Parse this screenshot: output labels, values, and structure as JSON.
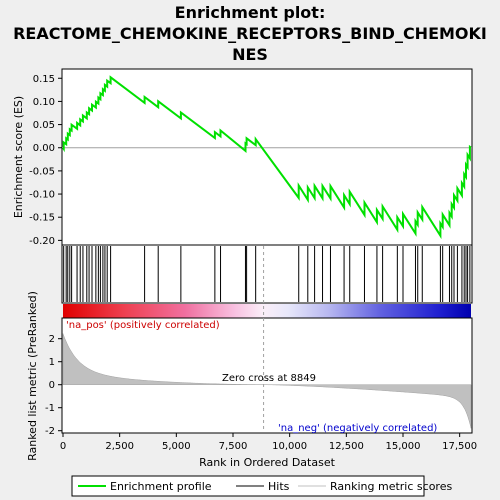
{
  "colors": {
    "es_line": "#00e000",
    "hits": "#000000",
    "metric_fill": "#c0c0c0",
    "pos_label": "#cc0000",
    "neg_label": "#0000cc",
    "zero_line": "#a0a0a0"
  },
  "chart_data": {
    "type": "line",
    "title_lines": [
      "Enrichment plot:",
      "REACTOME_CHEMOKINE_RECEPTORS_BIND_CHEMOKI",
      "NES"
    ],
    "n_genes": 18000,
    "es_panel": {
      "ylabel": "Enrichment score (ES)",
      "ylim": [
        -0.21,
        0.17
      ],
      "yticks": [
        0.15,
        0.1,
        0.05,
        0.0,
        -0.05,
        -0.1,
        -0.15,
        -0.2
      ],
      "ytick_labels": [
        "0.15",
        "0.10",
        "0.05",
        "0.00",
        "-0.05",
        "-0.10",
        "-0.15",
        "-0.20"
      ],
      "hits": [
        30,
        140,
        210,
        300,
        380,
        620,
        760,
        880,
        1050,
        1150,
        1280,
        1450,
        1560,
        1650,
        1760,
        1850,
        1950,
        2100,
        3600,
        4200,
        5200,
        6700,
        6950,
        8050,
        8100,
        8500,
        10400,
        10800,
        11100,
        11450,
        11800,
        12400,
        12650,
        13300,
        13850,
        14100,
        14750,
        15000,
        15550,
        15650,
        15850,
        16650,
        16750,
        17050,
        17150,
        17250,
        17400,
        17600,
        17700,
        17780,
        17850,
        17950
      ],
      "peak_es": 0.152,
      "min_es": -0.19
    },
    "metric_panel": {
      "ylabel": "Ranked list metric (PreRanked)",
      "ylim": [
        -2.1,
        2.9
      ],
      "yticks": [
        2,
        1,
        0,
        -1,
        -2
      ],
      "ytick_labels": [
        "2",
        "1",
        "0",
        "-1",
        "-2"
      ],
      "zero_cross": 8849,
      "zero_cross_label": "Zero cross at 8849",
      "pos_label": "'na_pos' (positively correlated)",
      "neg_label": "'na_neg' (negatively correlated)"
    },
    "x_axis": {
      "xlabel": "Rank in Ordered Dataset",
      "xticks": [
        0,
        2500,
        5000,
        7500,
        10000,
        12500,
        15000,
        17500
      ],
      "xtick_labels": [
        "0",
        "2,500",
        "5,000",
        "7,500",
        "10,000",
        "12,500",
        "15,000",
        "17,500"
      ]
    },
    "legend": {
      "items": [
        {
          "label": "Enrichment profile"
        },
        {
          "label": "Hits"
        },
        {
          "label": "Ranking metric scores"
        }
      ],
      "placement": "bottom"
    }
  }
}
